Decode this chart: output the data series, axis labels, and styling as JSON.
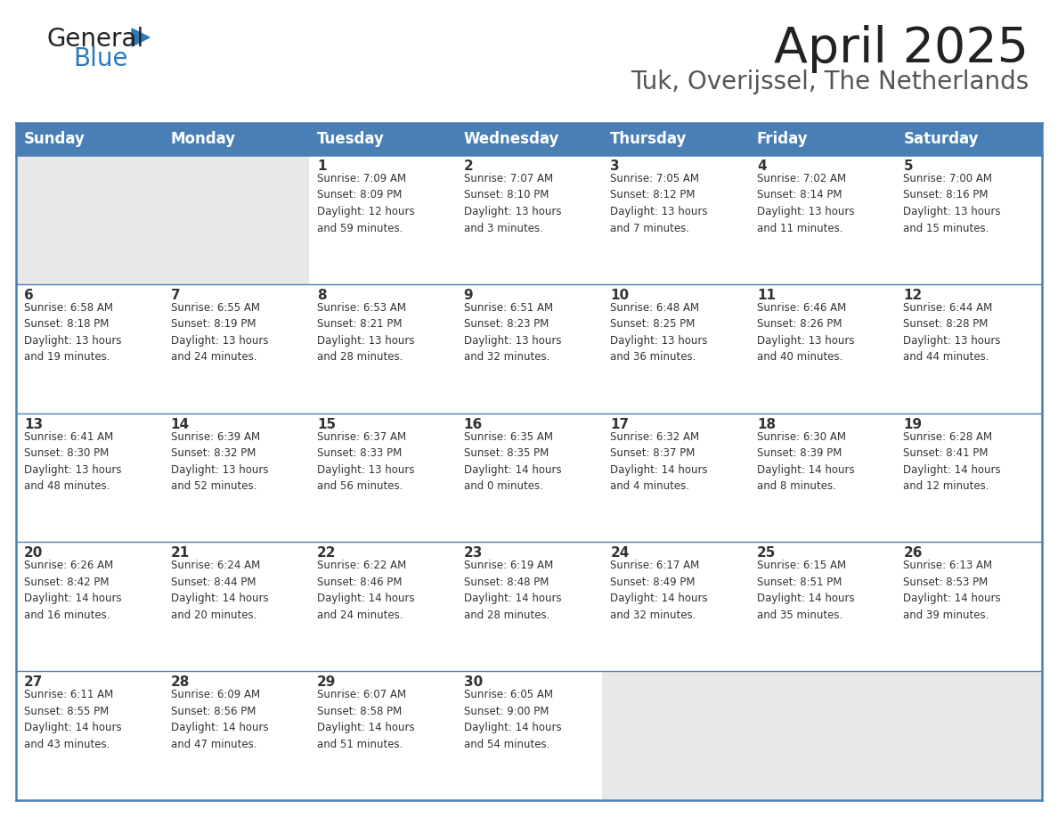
{
  "title": "April 2025",
  "subtitle": "Tuk, Overijssel, The Netherlands",
  "header_bg_color": "#4a7fb5",
  "header_text_color": "#ffffff",
  "cell_bg_white": "#ffffff",
  "cell_bg_gray": "#e8e8e8",
  "border_color": "#4a7fb5",
  "text_color": "#333333",
  "days_of_week": [
    "Sunday",
    "Monday",
    "Tuesday",
    "Wednesday",
    "Thursday",
    "Friday",
    "Saturday"
  ],
  "calendar_data": [
    [
      {
        "day": "",
        "info": ""
      },
      {
        "day": "",
        "info": ""
      },
      {
        "day": "1",
        "info": "Sunrise: 7:09 AM\nSunset: 8:09 PM\nDaylight: 12 hours\nand 59 minutes."
      },
      {
        "day": "2",
        "info": "Sunrise: 7:07 AM\nSunset: 8:10 PM\nDaylight: 13 hours\nand 3 minutes."
      },
      {
        "day": "3",
        "info": "Sunrise: 7:05 AM\nSunset: 8:12 PM\nDaylight: 13 hours\nand 7 minutes."
      },
      {
        "day": "4",
        "info": "Sunrise: 7:02 AM\nSunset: 8:14 PM\nDaylight: 13 hours\nand 11 minutes."
      },
      {
        "day": "5",
        "info": "Sunrise: 7:00 AM\nSunset: 8:16 PM\nDaylight: 13 hours\nand 15 minutes."
      }
    ],
    [
      {
        "day": "6",
        "info": "Sunrise: 6:58 AM\nSunset: 8:18 PM\nDaylight: 13 hours\nand 19 minutes."
      },
      {
        "day": "7",
        "info": "Sunrise: 6:55 AM\nSunset: 8:19 PM\nDaylight: 13 hours\nand 24 minutes."
      },
      {
        "day": "8",
        "info": "Sunrise: 6:53 AM\nSunset: 8:21 PM\nDaylight: 13 hours\nand 28 minutes."
      },
      {
        "day": "9",
        "info": "Sunrise: 6:51 AM\nSunset: 8:23 PM\nDaylight: 13 hours\nand 32 minutes."
      },
      {
        "day": "10",
        "info": "Sunrise: 6:48 AM\nSunset: 8:25 PM\nDaylight: 13 hours\nand 36 minutes."
      },
      {
        "day": "11",
        "info": "Sunrise: 6:46 AM\nSunset: 8:26 PM\nDaylight: 13 hours\nand 40 minutes."
      },
      {
        "day": "12",
        "info": "Sunrise: 6:44 AM\nSunset: 8:28 PM\nDaylight: 13 hours\nand 44 minutes."
      }
    ],
    [
      {
        "day": "13",
        "info": "Sunrise: 6:41 AM\nSunset: 8:30 PM\nDaylight: 13 hours\nand 48 minutes."
      },
      {
        "day": "14",
        "info": "Sunrise: 6:39 AM\nSunset: 8:32 PM\nDaylight: 13 hours\nand 52 minutes."
      },
      {
        "day": "15",
        "info": "Sunrise: 6:37 AM\nSunset: 8:33 PM\nDaylight: 13 hours\nand 56 minutes."
      },
      {
        "day": "16",
        "info": "Sunrise: 6:35 AM\nSunset: 8:35 PM\nDaylight: 14 hours\nand 0 minutes."
      },
      {
        "day": "17",
        "info": "Sunrise: 6:32 AM\nSunset: 8:37 PM\nDaylight: 14 hours\nand 4 minutes."
      },
      {
        "day": "18",
        "info": "Sunrise: 6:30 AM\nSunset: 8:39 PM\nDaylight: 14 hours\nand 8 minutes."
      },
      {
        "day": "19",
        "info": "Sunrise: 6:28 AM\nSunset: 8:41 PM\nDaylight: 14 hours\nand 12 minutes."
      }
    ],
    [
      {
        "day": "20",
        "info": "Sunrise: 6:26 AM\nSunset: 8:42 PM\nDaylight: 14 hours\nand 16 minutes."
      },
      {
        "day": "21",
        "info": "Sunrise: 6:24 AM\nSunset: 8:44 PM\nDaylight: 14 hours\nand 20 minutes."
      },
      {
        "day": "22",
        "info": "Sunrise: 6:22 AM\nSunset: 8:46 PM\nDaylight: 14 hours\nand 24 minutes."
      },
      {
        "day": "23",
        "info": "Sunrise: 6:19 AM\nSunset: 8:48 PM\nDaylight: 14 hours\nand 28 minutes."
      },
      {
        "day": "24",
        "info": "Sunrise: 6:17 AM\nSunset: 8:49 PM\nDaylight: 14 hours\nand 32 minutes."
      },
      {
        "day": "25",
        "info": "Sunrise: 6:15 AM\nSunset: 8:51 PM\nDaylight: 14 hours\nand 35 minutes."
      },
      {
        "day": "26",
        "info": "Sunrise: 6:13 AM\nSunset: 8:53 PM\nDaylight: 14 hours\nand 39 minutes."
      }
    ],
    [
      {
        "day": "27",
        "info": "Sunrise: 6:11 AM\nSunset: 8:55 PM\nDaylight: 14 hours\nand 43 minutes."
      },
      {
        "day": "28",
        "info": "Sunrise: 6:09 AM\nSunset: 8:56 PM\nDaylight: 14 hours\nand 47 minutes."
      },
      {
        "day": "29",
        "info": "Sunrise: 6:07 AM\nSunset: 8:58 PM\nDaylight: 14 hours\nand 51 minutes."
      },
      {
        "day": "30",
        "info": "Sunrise: 6:05 AM\nSunset: 9:00 PM\nDaylight: 14 hours\nand 54 minutes."
      },
      {
        "day": "",
        "info": ""
      },
      {
        "day": "",
        "info": ""
      },
      {
        "day": "",
        "info": ""
      }
    ]
  ],
  "logo_general_color": "#222222",
  "logo_blue_color": "#2b7bb9",
  "logo_triangle_color": "#2b7bb9",
  "title_color": "#222222",
  "subtitle_color": "#555555",
  "title_fontsize": 40,
  "subtitle_fontsize": 20,
  "header_fontsize": 12,
  "day_num_fontsize": 11,
  "info_fontsize": 8.5
}
